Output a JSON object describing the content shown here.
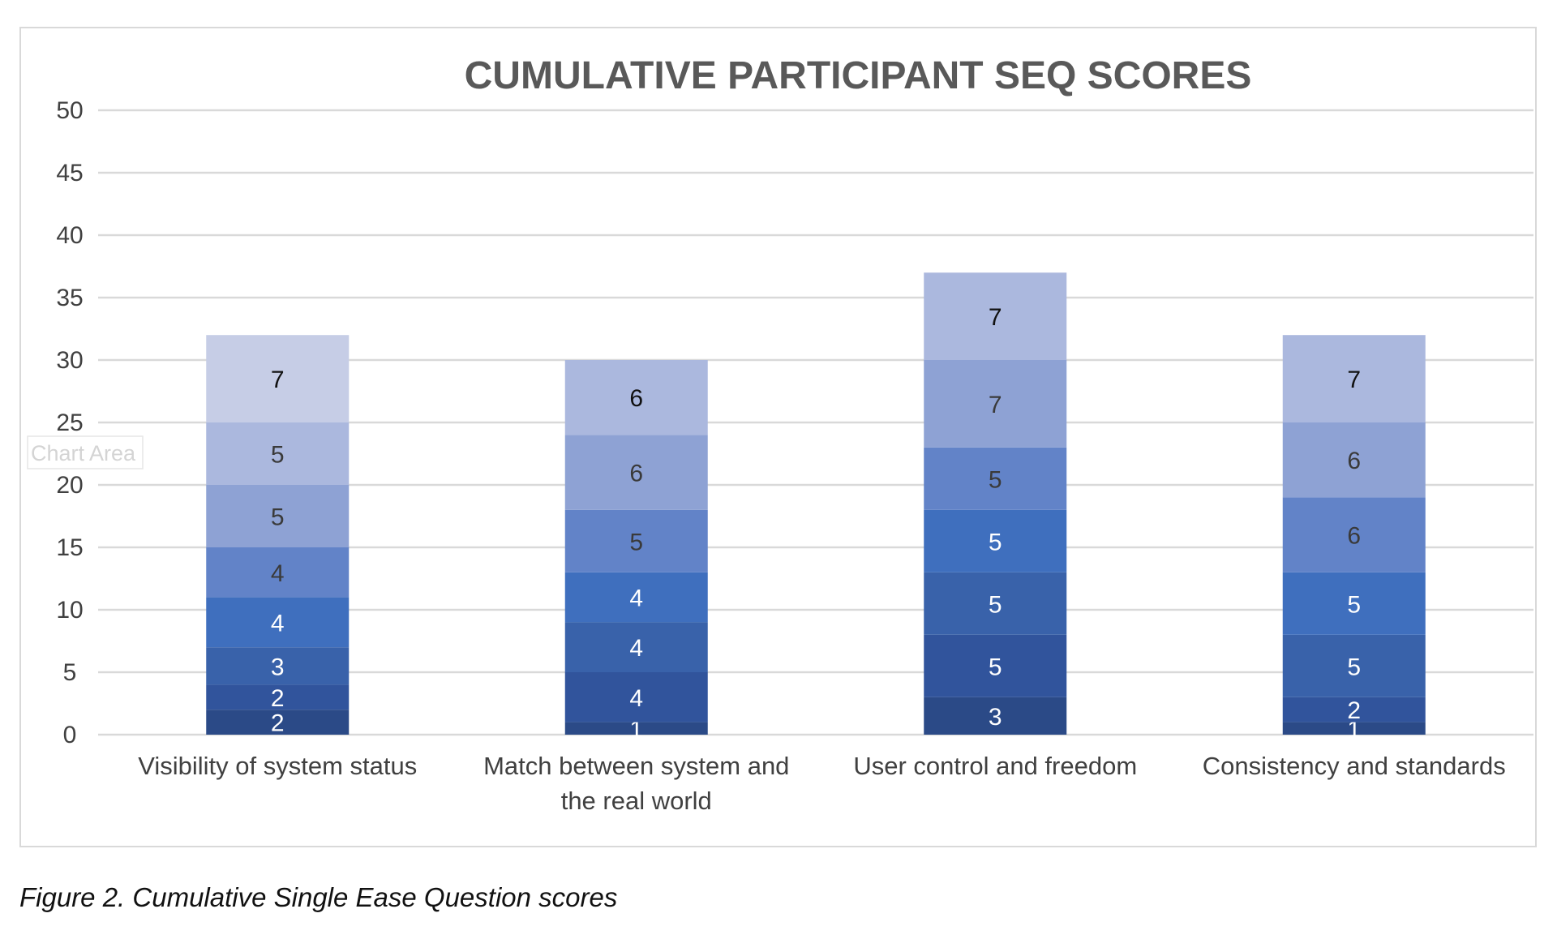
{
  "chart_data": {
    "type": "bar",
    "stacked": true,
    "title": "CUMULATIVE PARTICIPANT SEQ SCORES",
    "xlabel": "",
    "ylabel": "",
    "ylim": [
      0,
      50
    ],
    "y_ticks": [
      0,
      5,
      10,
      15,
      20,
      25,
      30,
      35,
      40,
      45,
      50
    ],
    "grid": true,
    "legend": "none",
    "categories": [
      "Visibility of system status",
      "Match between system and the real world",
      "User control and freedom",
      "Consistency and standards"
    ],
    "series": [
      {
        "values": [
          2,
          1,
          3,
          1
        ],
        "color": "#2b4a87"
      },
      {
        "values": [
          2,
          4,
          5,
          2
        ],
        "color": "#31549c"
      },
      {
        "values": [
          3,
          4,
          5,
          5
        ],
        "color": "#3962aa"
      },
      {
        "values": [
          4,
          4,
          5,
          5
        ],
        "color": "#3f6fbe"
      },
      {
        "values": [
          4,
          5,
          5,
          6
        ],
        "color": "#6283c8"
      },
      {
        "values": [
          5,
          6,
          7,
          6
        ],
        "color": "#8ea2d4"
      },
      {
        "values": [
          5,
          6,
          7,
          7
        ],
        "color": "#abb8de"
      },
      {
        "values": [
          7,
          null,
          null,
          null
        ],
        "color": "#c6cde6"
      }
    ],
    "label_colors": {
      "dark_segments": "#ffffff",
      "light_segments": "#3a3a3a",
      "top_segments": "#111111"
    }
  },
  "overlay": {
    "tooltip": "Chart Area"
  },
  "caption": "Figure 2. Cumulative Single Ease Question scores"
}
